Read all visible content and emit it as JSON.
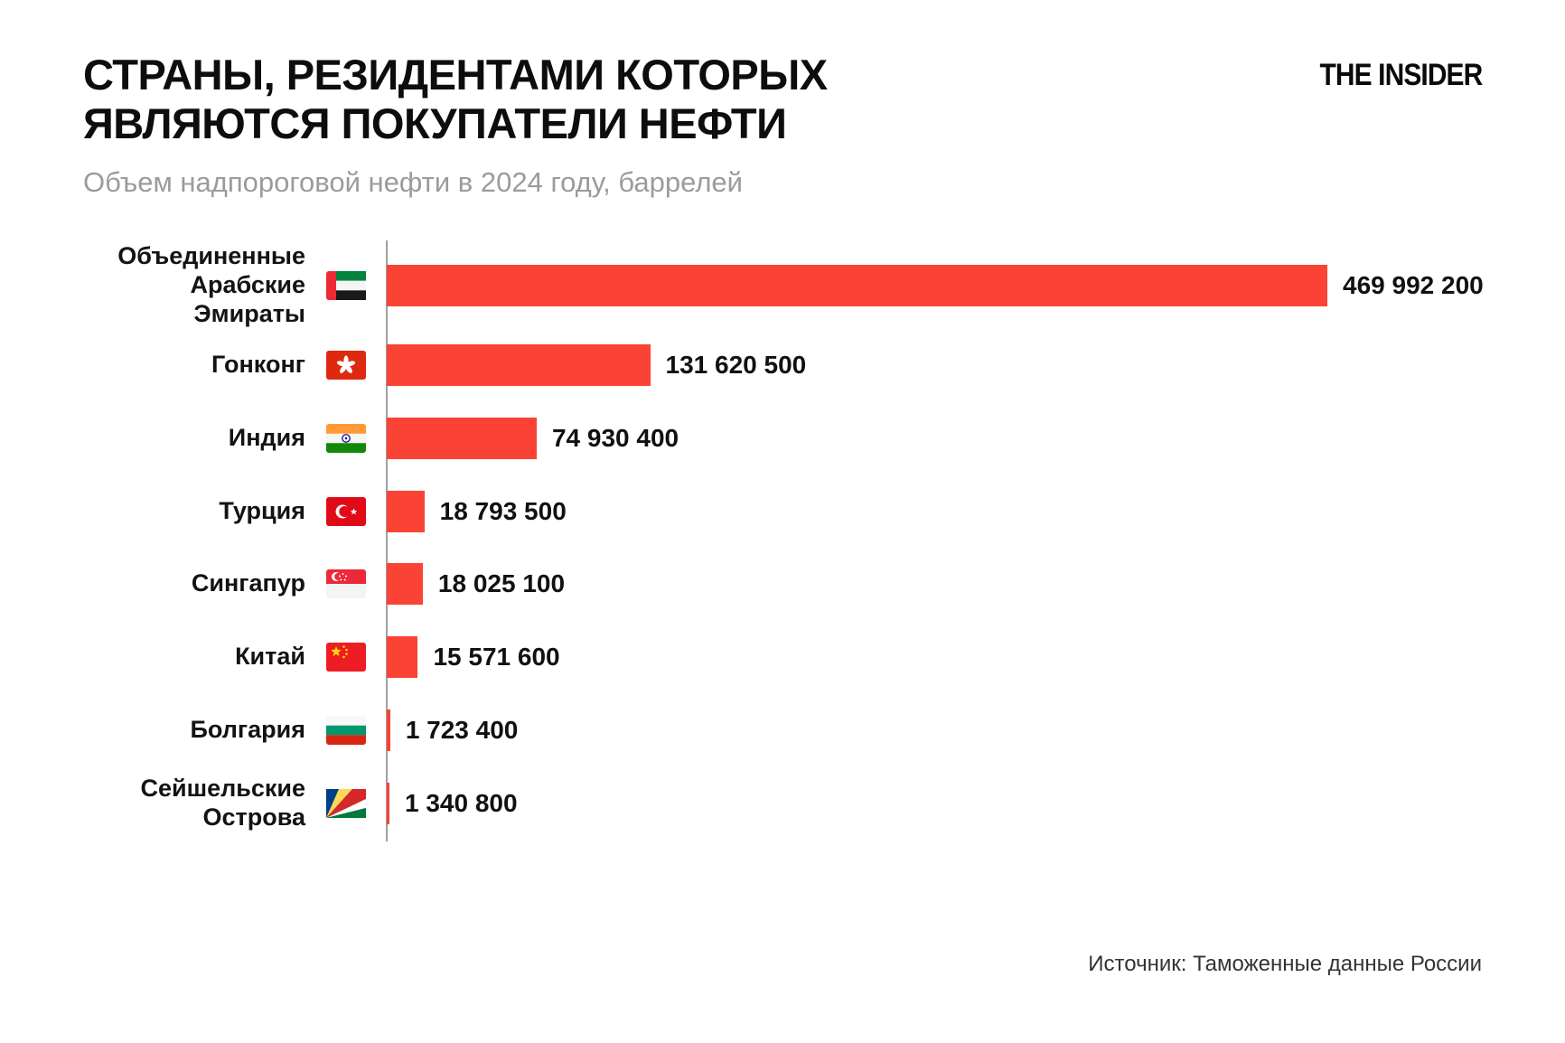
{
  "header": {
    "title_line1": "СТРАНЫ, РЕЗИДЕНТАМИ КОТОРЫХ",
    "title_line2": "ЯВЛЯЮТСЯ ПОКУПАТЕЛИ НЕФТИ",
    "subtitle": "Объем надпороговой нефти в 2024 году, баррелей",
    "logo": "THE INSIDER"
  },
  "footer": {
    "source": "Источник: Таможенные данные России"
  },
  "colors": {
    "bar": "#fb4335",
    "axis": "#a0a0a0",
    "title": "#0d0d0d",
    "subtitle": "#9b9b9b",
    "value_label": "#111111",
    "source": "#333333"
  },
  "chart_data": {
    "type": "bar",
    "orientation": "horizontal",
    "title": "СТРАНЫ, РЕЗИДЕНТАМИ КОТОРЫХ ЯВЛЯЮТСЯ ПОКУПАТЕЛИ НЕФТИ",
    "subtitle": "Объем надпороговой нефти в 2024 году, баррелей",
    "xlim": [
      0,
      469992200
    ],
    "grid": false,
    "legend": false,
    "max_value": 469992200,
    "categories": [
      "Объединенные Арабские Эмираты",
      "Гонконг",
      "Индия",
      "Турция",
      "Сингапур",
      "Китай",
      "Болгария",
      "Сейшельские Острова"
    ],
    "values": [
      469992200,
      131620500,
      74930400,
      18793500,
      18025100,
      15571600,
      1723400,
      1340800
    ],
    "rows": [
      {
        "label": "Объединенные Арабские Эмираты",
        "flag": "uae-flag-icon",
        "value": 469992200,
        "value_label": "469 992 200"
      },
      {
        "label": "Гонконг",
        "flag": "hong-kong-flag-icon",
        "value": 131620500,
        "value_label": "131 620 500"
      },
      {
        "label": "Индия",
        "flag": "india-flag-icon",
        "value": 74930400,
        "value_label": "74 930 400"
      },
      {
        "label": "Турция",
        "flag": "turkey-flag-icon",
        "value": 18793500,
        "value_label": "18 793 500"
      },
      {
        "label": "Сингапур",
        "flag": "singapore-flag-icon",
        "value": 18025100,
        "value_label": "18 025 100"
      },
      {
        "label": "Китай",
        "flag": "china-flag-icon",
        "value": 15571600,
        "value_label": "15 571 600"
      },
      {
        "label": "Болгария",
        "flag": "bulgaria-flag-icon",
        "value": 1723400,
        "value_label": "1 723 400"
      },
      {
        "label": "Сейшельские Острова",
        "flag": "seychelles-flag-icon",
        "value": 1340800,
        "value_label": "1 340 800"
      }
    ]
  }
}
